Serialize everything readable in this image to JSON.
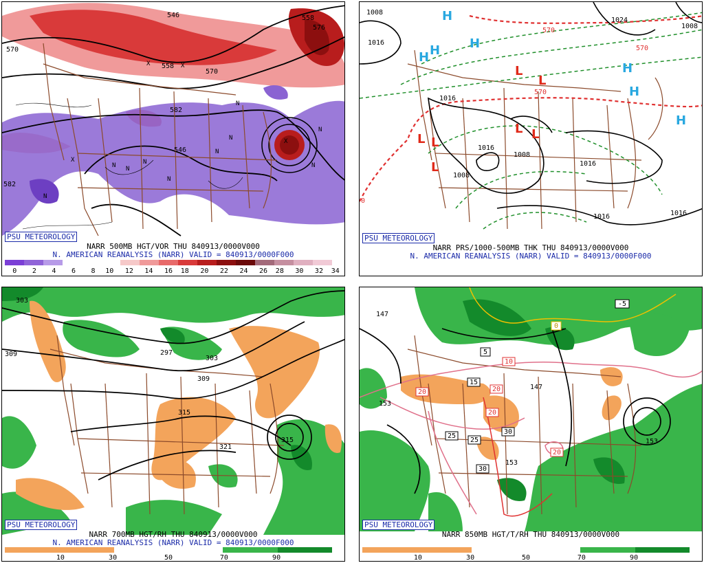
{
  "panels": {
    "p1": {
      "badge": "PSU METEOROLOGY",
      "caption_line1": "NARR 500MB HGT/VOR THU 840913/0000V000",
      "caption_line2": "N. AMERICAN REANALYSIS (NARR) VALID = 840913/0000F000",
      "colorbar_labels": [
        "0",
        "2",
        "4",
        "6",
        "8",
        "10",
        "12",
        "14",
        "16",
        "18",
        "20",
        "22",
        "24",
        "26",
        "28",
        "30",
        "32",
        "34"
      ],
      "contour_labels": [
        "546",
        "570",
        "558",
        "570",
        "582",
        "576",
        "582",
        "546",
        "558"
      ],
      "vort_symbols": [
        "N",
        "N",
        "N",
        "N",
        "N",
        "N",
        "N",
        "N",
        "N",
        "N",
        "X",
        "X",
        "X",
        "X"
      ]
    },
    "p2": {
      "badge": "PSU METEOROLOGY",
      "caption_line1": "NARR PRS/1000-500MB THK THU 840913/0000V000",
      "caption_line2": "N. AMERICAN REANALYSIS (NARR) VALID = 840913/0000F000",
      "isobar_labels": [
        "1008",
        "1016",
        "1016",
        "1016",
        "1008",
        "1016",
        "1016",
        "1016",
        "1024",
        "1008",
        "1008"
      ],
      "thickness_labels": [
        "570",
        "570",
        "570",
        "0"
      ],
      "highs": [
        "H",
        "H",
        "H",
        "H",
        "H",
        "H",
        "H"
      ],
      "lows": [
        "L",
        "L",
        "L",
        "L",
        "L",
        "L",
        "L"
      ]
    },
    "p3": {
      "badge": "PSU METEOROLOGY",
      "caption_line1": "NARR 700MB HGT/RH THU 840913/0000V000",
      "caption_line2": "N. AMERICAN REANALYSIS (NARR) VALID = 840913/0000F000",
      "colorbar_labels": [
        "10",
        "30",
        "50",
        "70",
        "90"
      ],
      "contour_labels": [
        "303",
        "309",
        "297",
        "303",
        "309",
        "315",
        "321",
        "315"
      ]
    },
    "p4": {
      "badge": "PSU METEOROLOGY",
      "caption_line1": "NARR 850MB HGT/T/RH THU 840913/0000V000",
      "colorbar_labels": [
        "10",
        "30",
        "50",
        "70",
        "90"
      ],
      "contour_labels": [
        "147",
        "153",
        "147",
        "153",
        "153"
      ],
      "temp_boxes": [
        "-5",
        "0",
        "5",
        "10",
        "15",
        "20",
        "20",
        "20",
        "25",
        "25",
        "30",
        "30",
        "20"
      ]
    }
  },
  "colors": {
    "vort_purple": "#8a63d2",
    "vort_reds": [
      "#f6c9c9",
      "#f09a9a",
      "#e86a6a",
      "#d93a3a",
      "#b81d1d",
      "#8c0f0f"
    ],
    "rh_green": "#39b54a",
    "rh_dkgreen": "#138a2b",
    "rh_orange": "#f3a45b",
    "border_brown": "#8b4a2b",
    "isotherm_red": "#e03030",
    "high_blue": "#29a8e0",
    "low_red": "#e02a1a",
    "label_blue": "#1a2aa8"
  }
}
